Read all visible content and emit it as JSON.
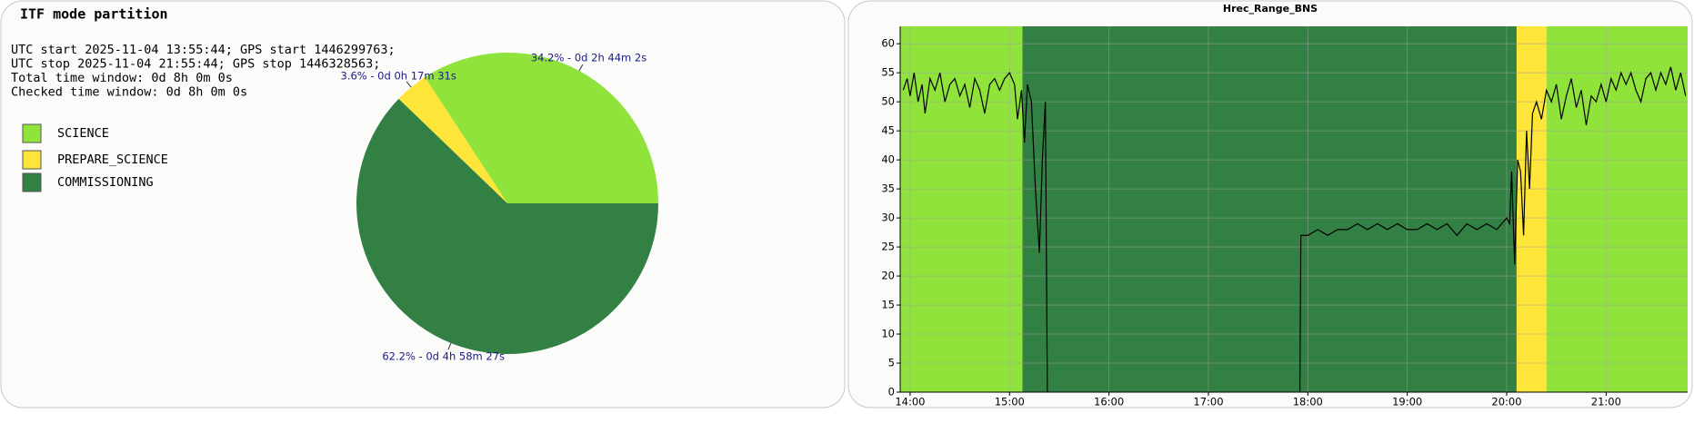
{
  "chart_data": [
    {
      "type": "pie",
      "title": "ITF mode partition",
      "info": [
        "UTC start 2025-11-04 13:55:44; GPS start 1446299763;",
        "UTC stop 2025-11-04 21:55:44; GPS stop 1446328563;",
        "Total time window: 0d 8h 0m 0s",
        "Checked time window: 0d 8h 0m 0s"
      ],
      "categories": [
        "SCIENCE",
        "PREPARE_SCIENCE",
        "COMMISSIONING"
      ],
      "values": [
        34.2,
        3.6,
        62.2
      ],
      "value_labels": [
        "34.2% - 0d 2h 44m 2s",
        "3.6% - 0d 0h 17m 31s",
        "62.2% - 0d 4h 58m 27s"
      ],
      "colors": [
        "#8fe33b",
        "#fde53a",
        "#338045"
      ]
    },
    {
      "type": "line",
      "title": "Hrec_Range_BNS",
      "xlim": [
        13.9,
        21.82
      ],
      "ylim": [
        0,
        63
      ],
      "xticks": [
        {
          "value": 14,
          "label": "14:00"
        },
        {
          "value": 15,
          "label": "15:00"
        },
        {
          "value": 16,
          "label": "16:00"
        },
        {
          "value": 17,
          "label": "17:00"
        },
        {
          "value": 18,
          "label": "18:00"
        },
        {
          "value": 19,
          "label": "19:00"
        },
        {
          "value": 20,
          "label": "20:00"
        },
        {
          "value": 21,
          "label": "21:00"
        }
      ],
      "yticks": [
        0,
        5,
        10,
        15,
        20,
        25,
        30,
        35,
        40,
        45,
        50,
        55,
        60
      ],
      "grid": true,
      "bands": [
        {
          "start": 13.9,
          "end": 15.13,
          "color": "#8fe33b"
        },
        {
          "start": 15.13,
          "end": 20.1,
          "color": "#338045"
        },
        {
          "start": 20.1,
          "end": 20.4,
          "color": "#fde53a"
        },
        {
          "start": 20.4,
          "end": 21.82,
          "color": "#8fe33b"
        }
      ],
      "color": "#000000",
      "x": [
        13.93,
        13.97,
        14.0,
        14.04,
        14.08,
        14.12,
        14.15,
        14.2,
        14.25,
        14.3,
        14.35,
        14.4,
        14.45,
        14.5,
        14.55,
        14.6,
        14.65,
        14.7,
        14.75,
        14.8,
        14.85,
        14.9,
        14.95,
        15.0,
        15.05,
        15.08,
        15.12,
        15.15,
        15.18,
        15.22,
        15.26,
        15.3,
        15.33,
        15.36,
        15.38,
        16.5,
        17.92,
        17.93,
        18.0,
        18.1,
        18.2,
        18.3,
        18.4,
        18.5,
        18.6,
        18.7,
        18.8,
        18.9,
        19.0,
        19.1,
        19.2,
        19.3,
        19.4,
        19.5,
        19.6,
        19.7,
        19.8,
        19.9,
        20.0,
        20.03,
        20.05,
        20.08,
        20.11,
        20.14,
        20.17,
        20.2,
        20.23,
        20.26,
        20.3,
        20.35,
        20.4,
        20.45,
        20.5,
        20.55,
        20.6,
        20.65,
        20.7,
        20.75,
        20.8,
        20.85,
        20.9,
        20.95,
        21.0,
        21.05,
        21.1,
        21.15,
        21.2,
        21.25,
        21.3,
        21.35,
        21.4,
        21.45,
        21.5,
        21.55,
        21.6,
        21.65,
        21.7,
        21.75,
        21.8
      ],
      "values": [
        52,
        54,
        51,
        55,
        50,
        53,
        48,
        54,
        52,
        55,
        50,
        53,
        54,
        51,
        53,
        49,
        54,
        52,
        48,
        53,
        54,
        52,
        54,
        55,
        53,
        47,
        52,
        43,
        53,
        50,
        35,
        24,
        40,
        50,
        0,
        null,
        0,
        27,
        27,
        28,
        27,
        28,
        28,
        29,
        28,
        29,
        28,
        29,
        28,
        28,
        29,
        28,
        29,
        27,
        29,
        28,
        29,
        28,
        30,
        29,
        38,
        22,
        40,
        38,
        27,
        45,
        35,
        48,
        50,
        47,
        52,
        50,
        53,
        47,
        51,
        54,
        49,
        52,
        46,
        51,
        50,
        53,
        50,
        54,
        52,
        55,
        53,
        55,
        52,
        50,
        54,
        55,
        52,
        55,
        53,
        56,
        52,
        55,
        51
      ]
    }
  ]
}
